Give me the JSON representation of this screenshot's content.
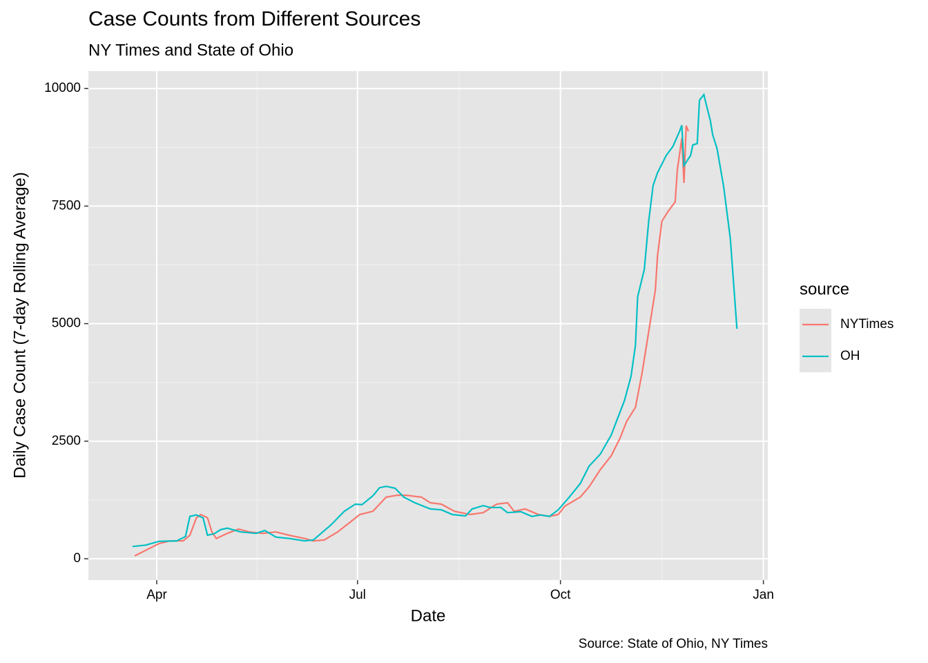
{
  "chart_data": {
    "type": "line",
    "title": "Case Counts from Different Sources",
    "subtitle": "NY Times and State of Ohio",
    "xlabel": "Date",
    "ylabel": "Daily Case Count (7-day Rolling Average)",
    "caption": "Source: State of Ohio, NY Times",
    "legend_title": "source",
    "legend": "right",
    "grid": true,
    "xlim": [
      -31,
      277
    ],
    "xticks": [
      {
        "value": 0,
        "label": "Apr"
      },
      {
        "value": 91,
        "label": "Jul"
      },
      {
        "value": 183,
        "label": "Oct"
      },
      {
        "value": 275,
        "label": "Jan"
      }
    ],
    "ylim": [
      -455,
      10370
    ],
    "yticks": [
      0,
      2500,
      5000,
      7500,
      10000
    ],
    "series": [
      {
        "name": "NYTimes",
        "color": "#f8766d",
        "x": [
          -10,
          -5,
          1,
          6,
          12,
          15,
          18,
          20,
          23,
          25,
          27,
          32,
          37,
          42,
          48,
          54,
          60,
          67,
          71,
          76,
          82,
          88,
          92,
          98,
          104,
          109,
          113,
          120,
          124,
          129,
          135,
          142,
          148,
          154,
          159,
          162,
          167,
          173,
          178,
          182,
          185,
          192,
          196,
          201,
          206,
          210,
          213,
          217,
          220,
          223,
          226,
          227,
          229,
          232,
          235,
          236,
          237,
          238,
          239,
          240,
          241
        ],
        "values": [
          60,
          180,
          320,
          380,
          380,
          500,
          870,
          940,
          870,
          570,
          430,
          540,
          630,
          570,
          540,
          570,
          500,
          430,
          380,
          400,
          570,
          790,
          940,
          1010,
          1310,
          1350,
          1350,
          1310,
          1190,
          1160,
          1010,
          940,
          980,
          1160,
          1190,
          1010,
          1060,
          940,
          900,
          940,
          1120,
          1310,
          1530,
          1890,
          2190,
          2560,
          2920,
          3220,
          3950,
          4830,
          5710,
          6450,
          7180,
          7400,
          7590,
          8280,
          8600,
          8940,
          7990,
          9210,
          9090
        ]
      },
      {
        "name": "OH",
        "color": "#00bfc4",
        "x": [
          -11,
          -5,
          1,
          9,
          13,
          15,
          18,
          21,
          23,
          26,
          29,
          32,
          38,
          45,
          49,
          54,
          60,
          67,
          71,
          76,
          79,
          85,
          90,
          93,
          98,
          101,
          104,
          108,
          112,
          117,
          124,
          129,
          134,
          140,
          143,
          148,
          151,
          156,
          159,
          165,
          170,
          174,
          178,
          182,
          187,
          192,
          196,
          201,
          206,
          209,
          212,
          215,
          217,
          218,
          221,
          223,
          225,
          227,
          231,
          234,
          237,
          238,
          239,
          242,
          243,
          245,
          246,
          248,
          249,
          251,
          252,
          254,
          257,
          260,
          263
        ],
        "values": [
          260,
          290,
          370,
          380,
          470,
          900,
          930,
          870,
          500,
          530,
          620,
          650,
          570,
          540,
          600,
          460,
          430,
          380,
          400,
          600,
          720,
          1010,
          1160,
          1150,
          1340,
          1510,
          1540,
          1500,
          1310,
          1190,
          1060,
          1040,
          940,
          910,
          1060,
          1130,
          1090,
          1090,
          980,
          1000,
          900,
          930,
          900,
          1040,
          1310,
          1600,
          1970,
          2220,
          2630,
          3000,
          3360,
          3880,
          4540,
          5570,
          6150,
          7180,
          7940,
          8210,
          8580,
          8770,
          9090,
          9220,
          8360,
          8580,
          8800,
          8830,
          9750,
          9870,
          9680,
          9310,
          9020,
          8720,
          7910,
          6810,
          4890
        ]
      }
    ]
  }
}
